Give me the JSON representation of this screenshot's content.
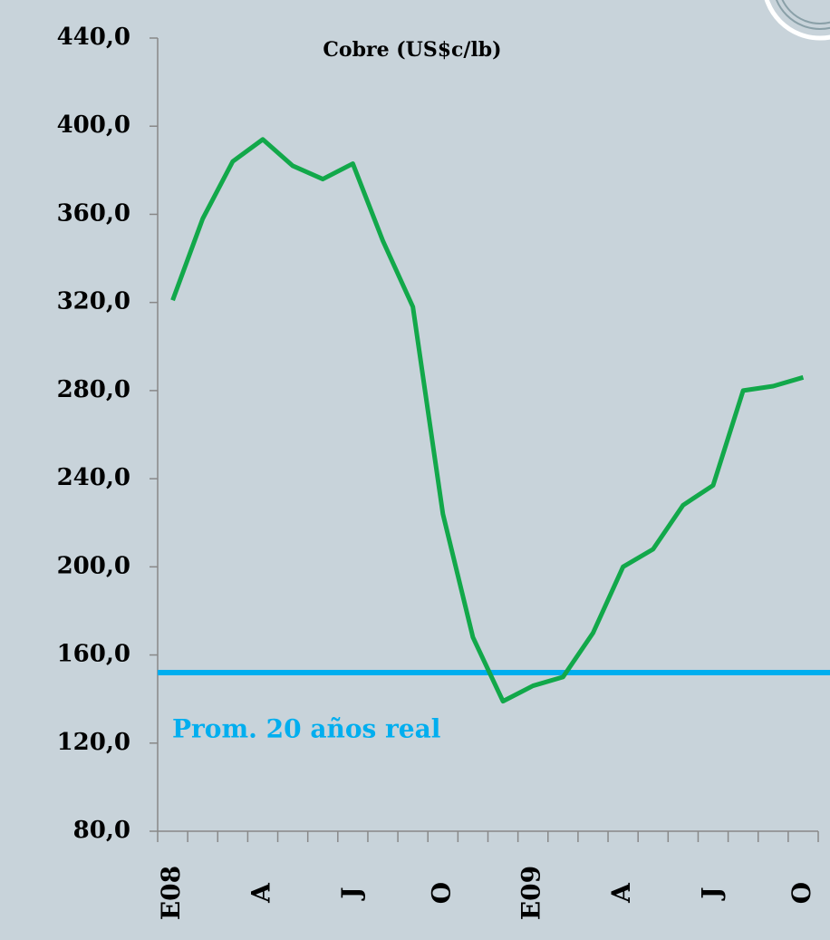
{
  "chart_data": {
    "type": "line",
    "title": "Cobre (US$c/lb)",
    "categories": [
      "E08",
      null,
      null,
      "A",
      null,
      null,
      "J",
      null,
      null,
      "O",
      null,
      null,
      "E09",
      null,
      null,
      "A",
      null,
      null,
      "J",
      null,
      null,
      "O"
    ],
    "series": [
      {
        "name": "Cobre",
        "color": "#12a84a",
        "values": [
          321,
          358,
          384,
          394,
          382,
          376,
          383,
          348,
          318,
          224,
          168,
          139,
          146,
          150,
          170,
          200,
          208,
          228,
          237,
          280,
          282,
          286
        ]
      }
    ],
    "reference": {
      "value": 152,
      "label": "Prom. 20 años real",
      "color": "#00aeef"
    },
    "ylim": [
      80,
      440
    ],
    "yticks": [
      {
        "value": 80,
        "label": "80,0"
      },
      {
        "value": 120,
        "label": "120,0"
      },
      {
        "value": 160,
        "label": "160,0"
      },
      {
        "value": 200,
        "label": "200,0"
      },
      {
        "value": 240,
        "label": "240,0"
      },
      {
        "value": 280,
        "label": "280,0"
      },
      {
        "value": 320,
        "label": "320,0"
      },
      {
        "value": 360,
        "label": "360,0"
      },
      {
        "value": 400,
        "label": "400,0"
      },
      {
        "value": 440,
        "label": "440,0"
      }
    ],
    "grid": false
  }
}
